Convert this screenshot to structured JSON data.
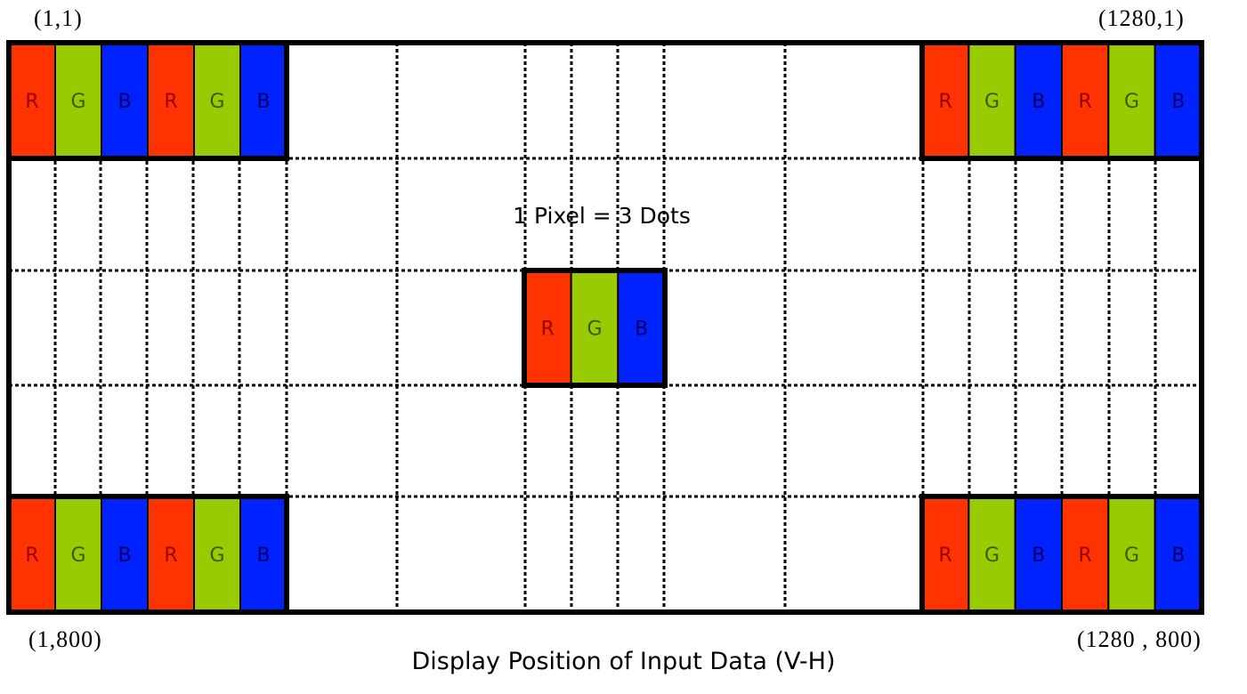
{
  "coordinates": {
    "top_left": "(1,1)",
    "top_right": "(1280,1)",
    "bottom_left": "(1,800)",
    "bottom_right": "(1280 , 800)"
  },
  "center_label": "1 Pixel = 3 Dots",
  "caption": "Display Position of Input Data (V-H)",
  "dots": [
    {
      "label": "R",
      "color": "#ff3300",
      "text_color": "#990000"
    },
    {
      "label": "G",
      "color": "#99cc00",
      "text_color": "#445500"
    },
    {
      "label": "B",
      "color": "#0022ff",
      "text_color": "#000066"
    }
  ]
}
